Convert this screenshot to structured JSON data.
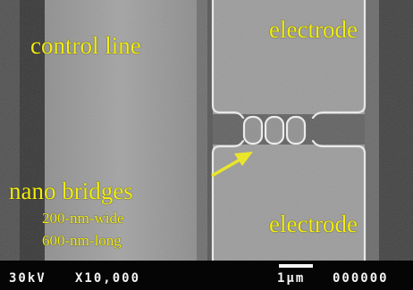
{
  "image": {
    "labels": {
      "control_line": "control line",
      "electrode_top": "electrode",
      "electrode_bottom": "electrode",
      "nano_bridges": "nano bridges",
      "width": "200-nm-wide",
      "length": "600-nm-long"
    },
    "databar": {
      "voltage": "30kV",
      "magnification": "X10,000",
      "scale": "1µm",
      "number": "000000"
    },
    "colors": {
      "annotation": "#f2ee12",
      "databar_text": "#f4f4f4",
      "databar_bg": "#050505"
    },
    "bridge_count": 3
  }
}
